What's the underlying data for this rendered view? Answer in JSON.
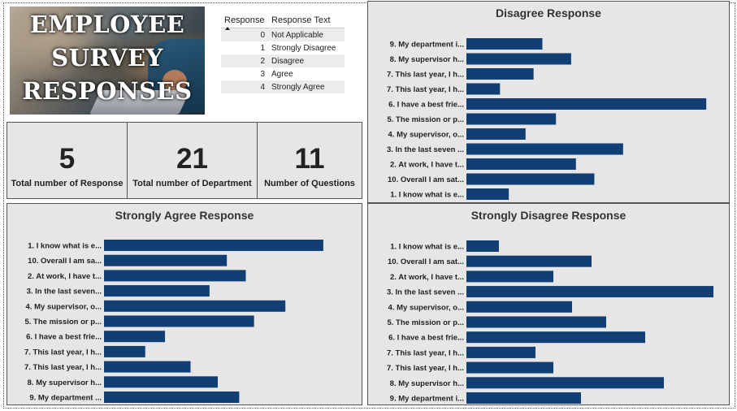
{
  "banner": {
    "title_lines": [
      "EMPLOYEE",
      "SURVEY",
      "RESPONSES"
    ]
  },
  "legend_table": {
    "headers": [
      "Response",
      "Response Text"
    ],
    "rows": [
      {
        "code": "0",
        "text": "Not Applicable"
      },
      {
        "code": "1",
        "text": "Strongly Disagree"
      },
      {
        "code": "2",
        "text": "Disagree"
      },
      {
        "code": "3",
        "text": "Agree"
      },
      {
        "code": "4",
        "text": "Strongly Agree"
      }
    ]
  },
  "kpis": [
    {
      "value": "5",
      "label": "Total number of Response"
    },
    {
      "value": "21",
      "label": "Total number of Department"
    },
    {
      "value": "11",
      "label": "Number of Questions"
    }
  ],
  "colors": {
    "bar": "#123f73",
    "panel_bg": "#e6e6e6"
  },
  "chart_data": [
    {
      "type": "bar",
      "orientation": "horizontal",
      "title": "Disagree Response",
      "categories": [
        "9. My department i...",
        "8. My supervisor h...",
        "7. This last year, I h...",
        "7. This last year, I h...",
        "6. I have a best frie...",
        "5. The mission or p...",
        "4. My supervisor, o...",
        "3. In the last seven ...",
        "2. At work, I have t...",
        "10. Overall I am sat...",
        "1. I know what is e..."
      ],
      "values": [
        95,
        131,
        84,
        42,
        300,
        112,
        74,
        196,
        137,
        160,
        53
      ],
      "xlim": [
        0,
        310
      ]
    },
    {
      "type": "bar",
      "orientation": "horizontal",
      "title": "Strongly Agree Response",
      "categories": [
        "1. I know what is e...",
        "10. Overall I am sa...",
        "2. At work, I have t...",
        "3. In the last seven...",
        "4. My supervisor, o...",
        "5. The mission or p...",
        "6. I have a best frie...",
        "7. This last year, I h...",
        "7. This last year, I h...",
        "8. My supervisor h...",
        "9. My department ..."
      ],
      "values": [
        266,
        149,
        172,
        128,
        220,
        182,
        74,
        50,
        105,
        138,
        164
      ],
      "xlim": [
        0,
        275
      ]
    },
    {
      "type": "bar",
      "orientation": "horizontal",
      "title": "Strongly Disagree Response",
      "categories": [
        "1. I know what is e...",
        "10. Overall I am sat...",
        "2. At work, I have t...",
        "3. In the last seven ...",
        "4. My supervisor, o...",
        "5. The mission or p...",
        "6. I have a best frie...",
        "7. This last year, I h...",
        "7. This last year, I h...",
        "8. My supervisor h...",
        "9. My department i..."
      ],
      "values": [
        40,
        154,
        107,
        304,
        130,
        172,
        220,
        85,
        107,
        243,
        141
      ],
      "xlim": [
        0,
        310
      ]
    }
  ]
}
